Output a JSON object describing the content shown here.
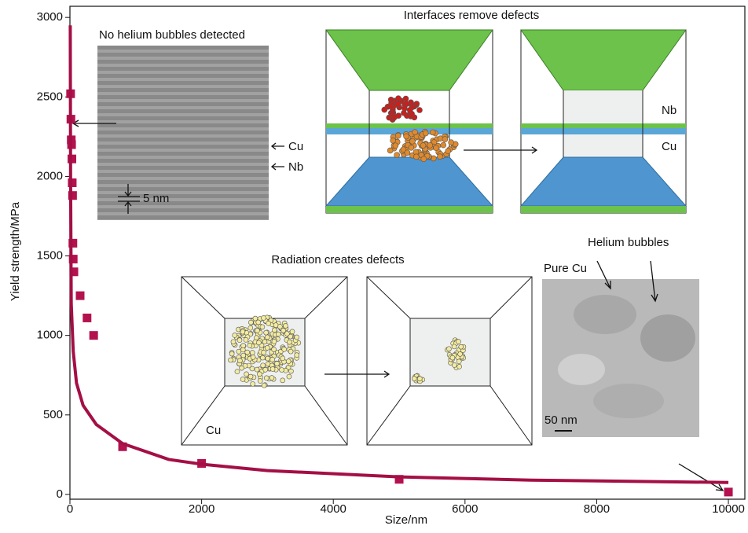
{
  "chart_data": {
    "type": "scatter",
    "x_label": "Size/nm",
    "y_label": "Yield strength/MPa",
    "xlim": [
      0,
      10250
    ],
    "ylim": [
      -30,
      3070
    ],
    "xticks": [
      0,
      2000,
      4000,
      6000,
      8000,
      10000
    ],
    "yticks": [
      0,
      500,
      1000,
      1500,
      2000,
      2500,
      3000
    ],
    "series": [
      {
        "type": "scatter",
        "color": "#b3124f",
        "x": [
          10,
          15,
          20,
          25,
          30,
          35,
          40,
          45,
          50,
          60,
          155,
          260,
          360,
          800,
          2000,
          5000,
          10000
        ],
        "values": [
          2520,
          2360,
          2230,
          2200,
          2110,
          1960,
          1880,
          1580,
          1480,
          1400,
          1250,
          1110,
          1000,
          300,
          195,
          95,
          15
        ]
      },
      {
        "type": "line",
        "color": "#a40f45",
        "x": [
          5,
          10,
          20,
          50,
          100,
          200,
          400,
          800,
          1500,
          2000,
          3000,
          5000,
          7000,
          10000
        ],
        "values": [
          2950,
          2000,
          1200,
          900,
          700,
          560,
          440,
          320,
          220,
          190,
          150,
          110,
          90,
          75
        ]
      }
    ],
    "annotations": [
      "No helium bubbles detected",
      "Cu",
      "Nb",
      "5 nm",
      "Interfaces remove defects",
      "Nb",
      "Cu",
      "Radiation creates defects",
      "Cu",
      "Pure Cu",
      "Helium bubbles",
      "50 nm"
    ]
  }
}
